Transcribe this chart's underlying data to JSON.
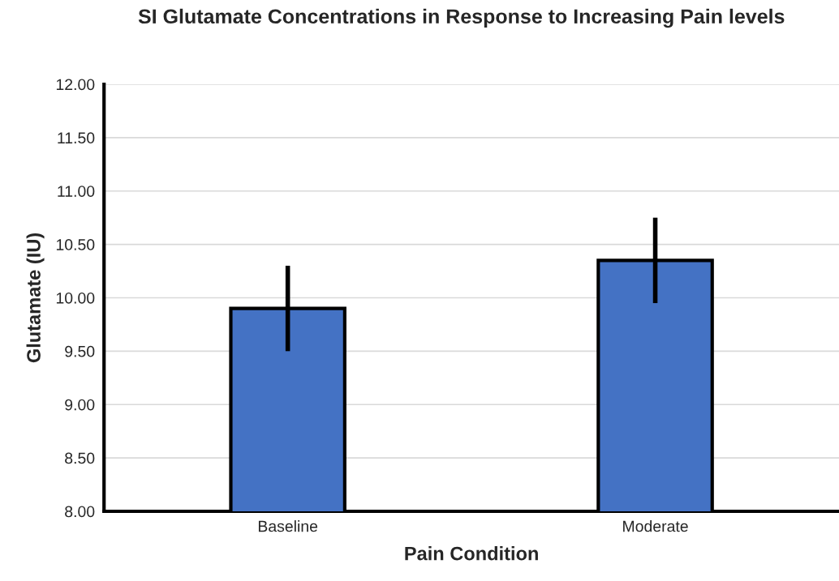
{
  "chart_data": {
    "type": "bar",
    "title": "SI Glutamate Concentrations in Response to Increasing Pain levels",
    "xlabel": "Pain Condition",
    "ylabel": "Glutamate (IU)",
    "categories": [
      "Baseline",
      "Moderate"
    ],
    "values": [
      9.9,
      10.35
    ],
    "errors": [
      0.4,
      0.4
    ],
    "color": "#4472c4",
    "ylim": [
      8,
      12
    ],
    "yticks": [
      {
        "value": 8,
        "label": "8.00"
      },
      {
        "value": 8.5,
        "label": "8.50"
      },
      {
        "value": 9,
        "label": "9.00"
      },
      {
        "value": 9.5,
        "label": "9.50"
      },
      {
        "value": 10,
        "label": "10.00"
      },
      {
        "value": 10.5,
        "label": "10.50"
      },
      {
        "value": 11,
        "label": "11.00"
      },
      {
        "value": 11.5,
        "label": "11.50"
      },
      {
        "value": 12,
        "label": "12.00"
      }
    ],
    "grid": "y"
  }
}
